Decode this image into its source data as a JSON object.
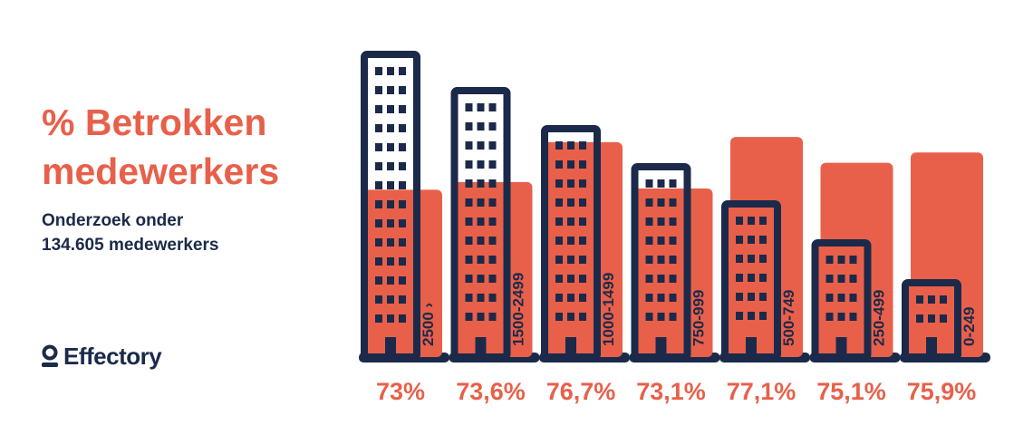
{
  "title_line1": "% Betrokken",
  "title_line2": "medewerkers",
  "subtitle_line1": "Onderzoek onder",
  "subtitle_line2": "134.605 medewerkers",
  "brand": "Effectory",
  "colors": {
    "accent": "#e8604a",
    "building": "#1b2a4a",
    "window_light": "#ffffff",
    "background": "#ffffff"
  },
  "chart_data": {
    "type": "bar",
    "categories": [
      "2500 ›",
      "1500-2499",
      "1000-1499",
      "750-999",
      "500-749",
      "250-499",
      "0-249"
    ],
    "values": [
      73,
      73.6,
      76.7,
      73.1,
      77.1,
      75.1,
      75.9
    ],
    "value_labels": [
      "73%",
      "73,6%",
      "76,7%",
      "73,1%",
      "77,1%",
      "75,1%",
      "75,9%"
    ],
    "unit": "%",
    "legend": "none",
    "grid": false
  }
}
